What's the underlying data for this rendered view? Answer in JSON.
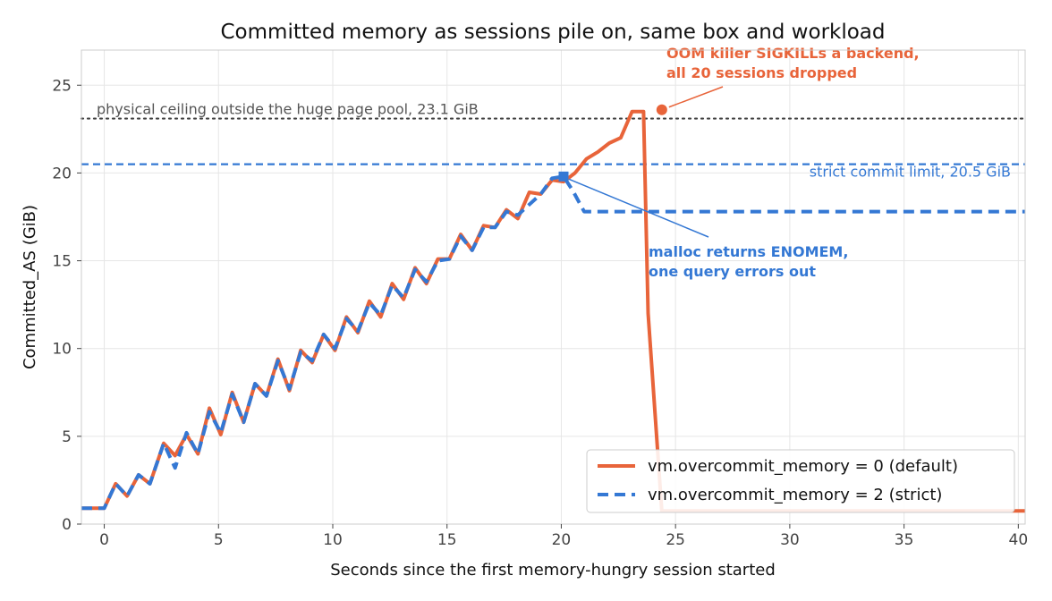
{
  "chart_data": {
    "type": "line",
    "title": "Committed memory as sessions pile on, same box and workload",
    "xlabel": "Seconds since the first memory-hungry session started",
    "ylabel": "Committed_AS (GiB)",
    "xlim": [
      -1,
      40.3
    ],
    "ylim": [
      0,
      27
    ],
    "xticks": [
      0,
      5,
      10,
      15,
      20,
      25,
      30,
      35,
      40
    ],
    "yticks": [
      0,
      5,
      10,
      15,
      20,
      25
    ],
    "grid": true,
    "legend_position": "lower-right",
    "colors": {
      "default": "#e8643a",
      "strict": "#3478d4",
      "ceiling": "#444444"
    },
    "reference_lines": [
      {
        "name": "ceiling",
        "y": 23.1,
        "style": "dotted",
        "label": "physical ceiling outside the huge page pool, 23.1 GiB"
      },
      {
        "name": "strict-limit",
        "y": 20.5,
        "style": "dashed",
        "label": "strict commit limit, 20.5 GiB"
      }
    ],
    "series": [
      {
        "key": "default",
        "name": "vm.overcommit_memory = 0 (default)",
        "style": "solid",
        "x": [
          -1,
          0,
          0.5,
          1,
          1.5,
          2,
          2.6,
          3.1,
          3.6,
          4.1,
          4.6,
          5.1,
          5.6,
          6.1,
          6.6,
          7.1,
          7.6,
          8.1,
          8.6,
          9.1,
          9.6,
          10.1,
          10.6,
          11.1,
          11.6,
          12.1,
          12.6,
          13.1,
          13.6,
          14.1,
          14.6,
          15.1,
          15.6,
          16.1,
          16.6,
          17.1,
          17.6,
          18.1,
          18.6,
          19.1,
          19.6,
          20.1,
          20.6,
          21.1,
          21.6,
          22.1,
          22.6,
          23.1,
          23.6,
          23.8,
          24.4,
          24.8,
          40.3
        ],
        "y": [
          0.9,
          0.9,
          2.3,
          1.6,
          2.8,
          2.3,
          4.6,
          3.9,
          5.1,
          4.0,
          6.6,
          5.1,
          7.5,
          5.8,
          8.0,
          7.3,
          9.4,
          7.6,
          9.9,
          9.2,
          10.8,
          9.9,
          11.8,
          10.9,
          12.7,
          11.8,
          13.7,
          12.8,
          14.6,
          13.7,
          15.1,
          15.1,
          16.5,
          15.6,
          17.0,
          16.9,
          17.9,
          17.4,
          18.9,
          18.8,
          19.6,
          19.5,
          20.0,
          20.8,
          21.2,
          21.7,
          22.0,
          23.5,
          23.5,
          12.0,
          0.75,
          0.75,
          0.75
        ]
      },
      {
        "key": "strict",
        "name": "vm.overcommit_memory = 2 (strict)",
        "style": "dashed",
        "x": [
          -1,
          0,
          0.5,
          1,
          1.5,
          2,
          2.6,
          3.1,
          3.6,
          4.1,
          4.6,
          5.1,
          5.6,
          6.1,
          6.6,
          7.1,
          7.6,
          8.1,
          8.6,
          9.1,
          9.6,
          10.1,
          10.6,
          11.1,
          11.6,
          12.1,
          12.6,
          13.1,
          13.6,
          14.1,
          14.6,
          15.1,
          15.6,
          16.1,
          16.6,
          17.1,
          17.6,
          18.1,
          18.6,
          19.1,
          19.6,
          20.1,
          20.5,
          21.0,
          40.3
        ],
        "y": [
          0.9,
          0.9,
          2.3,
          1.6,
          2.8,
          2.3,
          4.6,
          3.2,
          5.2,
          4.0,
          6.4,
          5.2,
          7.4,
          5.8,
          8.0,
          7.3,
          9.3,
          7.7,
          9.8,
          9.3,
          10.8,
          10.0,
          11.7,
          11.0,
          12.6,
          11.9,
          13.6,
          12.9,
          14.5,
          13.8,
          15.0,
          15.1,
          16.4,
          15.6,
          16.9,
          16.9,
          17.8,
          17.6,
          18.2,
          18.8,
          19.7,
          19.8,
          19.0,
          17.8,
          17.8
        ]
      }
    ],
    "annotations": [
      {
        "key": "oom",
        "series": "default",
        "x": 24.4,
        "y": 23.6,
        "marker": "circle",
        "text": [
          "OOM killer SIGKILLs a backend,",
          "all 20 sessions dropped"
        ]
      },
      {
        "key": "enomem",
        "series": "strict",
        "x": 20.1,
        "y": 19.8,
        "marker": "square",
        "text": [
          "malloc returns ENOMEM,",
          "one query errors out"
        ]
      }
    ]
  }
}
